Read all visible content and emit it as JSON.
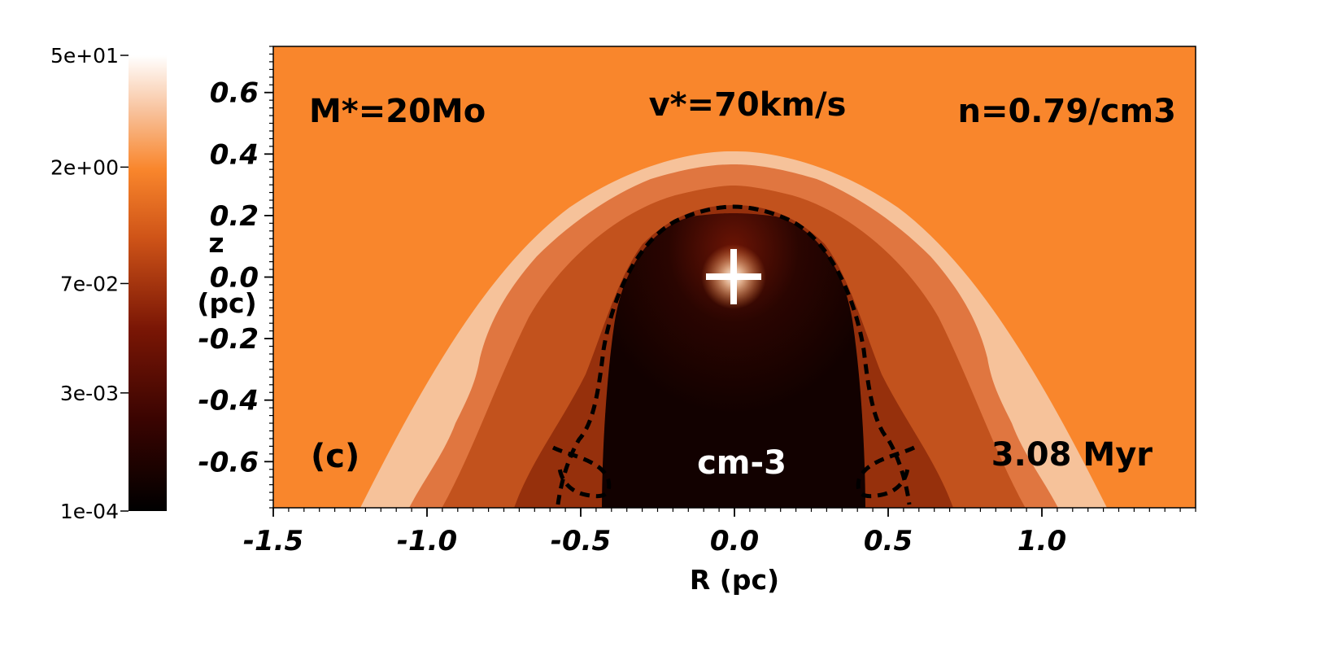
{
  "chart_data": {
    "type": "heatmap",
    "title": "",
    "xlabel": "R (pc)",
    "ylabel_line1": "z",
    "ylabel_line2": "(pc)",
    "xlim": [
      -1.5,
      1.5
    ],
    "ylim": [
      -0.75,
      0.75
    ],
    "x_ticks": [
      -1.5,
      -1.0,
      -0.5,
      0.0,
      0.5,
      1.0
    ],
    "x_tick_labels": [
      "-1.5",
      "-1.0",
      "-0.5",
      "0.0",
      "0.5",
      "1.0"
    ],
    "y_ticks": [
      0.6,
      0.4,
      0.2,
      0.0,
      -0.2,
      -0.4,
      -0.6
    ],
    "y_tick_labels": [
      "0.6",
      "0.4",
      "0.2",
      "0.0",
      "-0.2",
      "-0.4",
      "-0.6"
    ],
    "colorbar": {
      "scale": "log",
      "range": [
        0.0001,
        50
      ],
      "ticks": [
        50,
        2,
        0.07,
        0.003,
        0.0001
      ],
      "tick_labels": [
        "5e+01",
        "2e+00",
        "7e-02",
        "3e-03",
        "1e-04"
      ],
      "colors": [
        "#000000",
        "#5a0802",
        "#a8360d",
        "#e97a33",
        "#f6b98c",
        "#ffffff"
      ]
    },
    "annotations": {
      "mass": "M*=20Mo",
      "velocity": "v*=70km/s",
      "density": "n=0.79/cm3",
      "panel": "(c)",
      "unit": "cm-3",
      "time": "3.08 Myr"
    },
    "star_position": [
      0.0,
      0.0
    ],
    "background_color": "#f9862c",
    "shell_color": "#f6c29a",
    "inner_color": "#1e0301",
    "contour_style": "dashed black"
  }
}
